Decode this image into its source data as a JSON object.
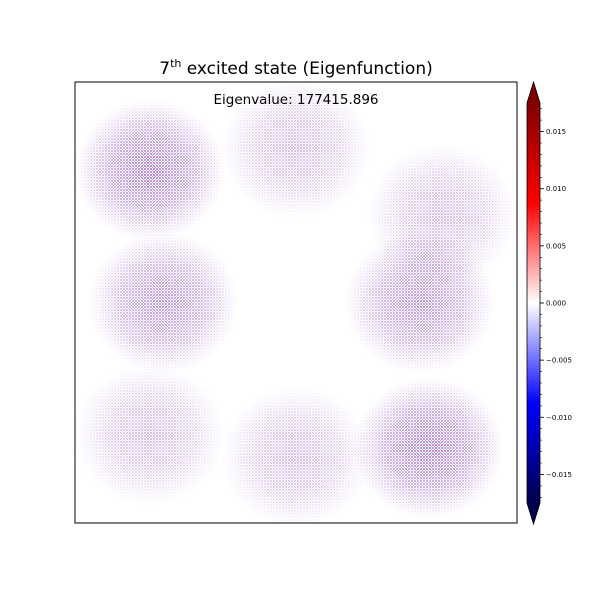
{
  "chart_data": {
    "type": "heatmap",
    "title_base": "7",
    "title_sup": "th",
    "title_rest": " excited state (Eigenfunction)",
    "annotation": "Eigenvalue: 177415.896",
    "grid": false,
    "colorbar": {
      "position": "right",
      "cmap": "seismic",
      "extend": "both",
      "range": [
        -0.0175,
        0.0175
      ],
      "ticks": [
        -0.015,
        -0.01,
        -0.005,
        0.0,
        0.005,
        0.01,
        0.015
      ],
      "tick_labels": [
        "−0.015",
        "−0.010",
        "−0.005",
        "0.000",
        "0.005",
        "0.010",
        "0.015"
      ],
      "colors": {
        "low": "#00004c",
        "blue": "#0000ff",
        "mid": "#ffffff",
        "red": "#ff0000",
        "high": "#800000"
      }
    },
    "field": {
      "description": "|psi| pattern of the eigenfunction, shown as a faint purple dot texture",
      "lobes": [
        {
          "x": 0.17,
          "y": 0.8,
          "amplitude": 1.0
        },
        {
          "x": 0.5,
          "y": 0.85,
          "amplitude": 0.55
        },
        {
          "x": 0.83,
          "y": 0.7,
          "amplitude": 0.55
        },
        {
          "x": 0.2,
          "y": 0.5,
          "amplitude": 0.85
        },
        {
          "x": 0.78,
          "y": 0.5,
          "amplitude": 0.85
        },
        {
          "x": 0.17,
          "y": 0.2,
          "amplitude": 0.55
        },
        {
          "x": 0.5,
          "y": 0.15,
          "amplitude": 0.55
        },
        {
          "x": 0.8,
          "y": 0.17,
          "amplitude": 1.0
        }
      ]
    }
  }
}
